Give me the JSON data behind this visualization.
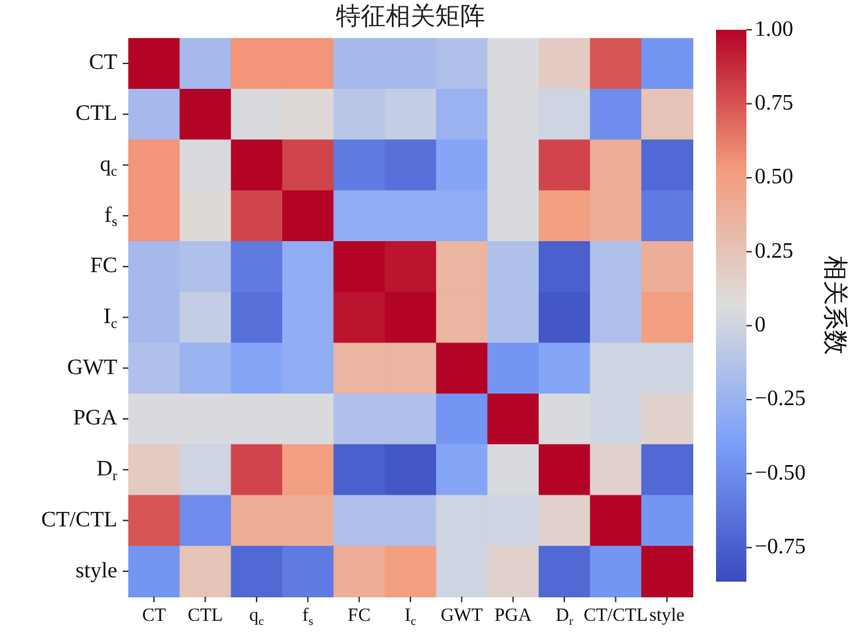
{
  "chart_data": {
    "type": "heatmap",
    "title": "特征相关矩阵",
    "clabel": "相关系数",
    "categories": [
      "CT",
      "CTL",
      "q$_{c}$",
      "f$_{s}$",
      "FC",
      "I$_{c}$",
      "GWT",
      "PGA",
      "D$_{r}$",
      "CT/CTL",
      "style"
    ],
    "y_categories": [
      "CT",
      "CTL",
      "q$_{c}$",
      "f$_{s}$",
      "FC",
      "I$_{c}$",
      "GWT",
      "PGA",
      "D$_{r}$",
      "CT/CTL",
      "style"
    ],
    "cells": [
      [
        1,
        -0.2,
        0.55,
        0.55,
        -0.2,
        -0.2,
        -0.15,
        0.05,
        0.2,
        0.75,
        -0.45
      ],
      [
        -0.2,
        1,
        0.05,
        0.1,
        -0.1,
        -0.05,
        -0.25,
        0.05,
        0.0,
        -0.5,
        0.25
      ],
      [
        0.55,
        0.05,
        1,
        0.8,
        -0.6,
        -0.65,
        -0.35,
        0.05,
        0.8,
        0.4,
        -0.7
      ],
      [
        0.55,
        0.1,
        0.8,
        1,
        -0.3,
        -0.3,
        -0.3,
        0.05,
        0.5,
        0.4,
        -0.6
      ],
      [
        -0.2,
        -0.15,
        -0.6,
        -0.3,
        1,
        0.95,
        0.35,
        -0.15,
        -0.75,
        -0.15,
        0.4
      ],
      [
        -0.2,
        -0.05,
        -0.65,
        -0.3,
        0.95,
        1,
        0.35,
        -0.15,
        -0.8,
        -0.15,
        0.5
      ],
      [
        -0.15,
        -0.25,
        -0.35,
        -0.3,
        0.35,
        0.35,
        1,
        -0.45,
        -0.35,
        0.0,
        0.0
      ],
      [
        0.05,
        0.05,
        0.05,
        0.05,
        -0.15,
        -0.15,
        -0.45,
        1,
        0.05,
        0.0,
        0.15
      ],
      [
        0.2,
        0.0,
        0.8,
        0.5,
        -0.75,
        -0.8,
        -0.35,
        0.05,
        1,
        0.15,
        -0.7
      ],
      [
        0.75,
        -0.5,
        0.4,
        0.4,
        -0.15,
        -0.15,
        0.0,
        0.0,
        0.15,
        1,
        -0.45
      ],
      [
        -0.45,
        0.25,
        -0.7,
        -0.6,
        0.4,
        0.5,
        0.0,
        0.15,
        -0.7,
        -0.45,
        1
      ]
    ],
    "clim": [
      -0.86,
      1.0
    ],
    "cticks": [
      {
        "value": -0.75,
        "label": "−0.75"
      },
      {
        "value": -0.5,
        "label": "−0.50"
      },
      {
        "value": -0.25,
        "label": "−0.25"
      },
      0,
      {
        "value": 0.25,
        "label": "0.25"
      },
      {
        "value": 0.5,
        "label": "0.50"
      },
      {
        "value": 0.75,
        "label": "0.75"
      },
      {
        "value": 1,
        "label": "1.00"
      }
    ]
  }
}
